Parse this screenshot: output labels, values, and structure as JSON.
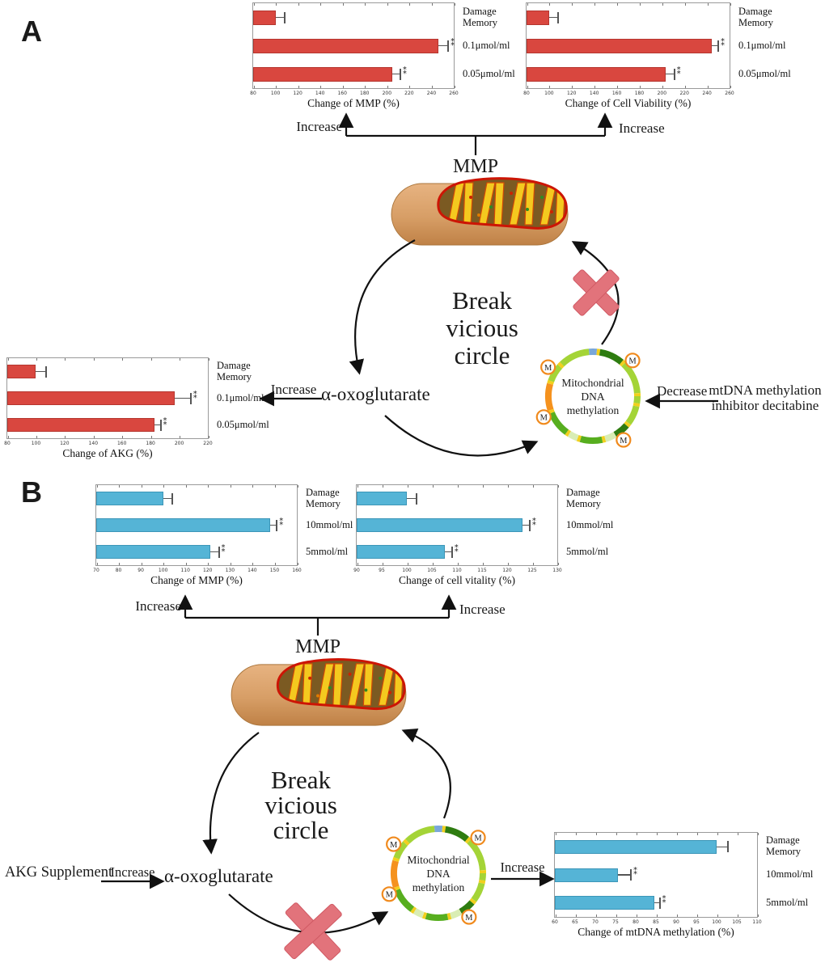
{
  "figure": {
    "panel_a_label": "A",
    "panel_b_label": "B"
  },
  "panels": {
    "a": {
      "increase_left": "Increase",
      "increase_right": "Increase",
      "mmp": "MMP",
      "break_line1": "Break",
      "break_line2": "vicious",
      "break_line3": "circle",
      "alpha_oxoglutarate": "α-oxoglutarate",
      "increase_akg": "Increase",
      "plasmid_line1": "Mitochondrial",
      "plasmid_line2": "DNA",
      "plasmid_line3": "methylation",
      "m_badge": "M",
      "decrease": "Decrease",
      "inhibitor_line1": "mtDNA methylation",
      "inhibitor_line2": "inhibitor decitabine"
    },
    "b": {
      "increase_left": "Increase",
      "increase_right": "Increase",
      "mmp": "MMP",
      "break_line1": "Break",
      "break_line2": "vicious",
      "break_line3": "circle",
      "akg_supplement": "AKG Supplement",
      "increase_supplement": "Increase",
      "alpha_oxoglutarate": "α-oxoglutarate",
      "plasmid_line1": "Mitochondrial",
      "plasmid_line2": "DNA",
      "plasmid_line3": "methylation",
      "m_badge": "M",
      "increase_mtdna": "Increase"
    }
  },
  "colors": {
    "bar_red": "#d9473f",
    "bar_red_border": "#b5362f",
    "bar_blue": "#55b4d6",
    "bar_blue_border": "#3c96b8",
    "cross_red": "#e2737b",
    "cross_red_border": "#d05a64",
    "plasmid_orange": "#f5921e",
    "mito_body_tan": "#d79e66",
    "mito_cristae_yellow": "#f4c91f",
    "mito_rim_red": "#cc1505"
  },
  "chart_data": [
    {
      "id": "a_mmp",
      "panel": "A",
      "type": "bar",
      "orientation": "horizontal",
      "xlabel": "Change of MMP (%)",
      "categories": [
        "Damage\nMemory",
        "0.1μmol/ml",
        "0.05μmol/ml"
      ],
      "values": [
        100,
        246,
        205
      ],
      "errors": [
        8,
        9,
        7
      ],
      "significance": [
        "",
        "**",
        "**"
      ],
      "xlim": [
        80,
        260
      ],
      "xticks": [
        80,
        100,
        120,
        140,
        160,
        180,
        200,
        220,
        240,
        260
      ],
      "bar_color": "#d9473f",
      "bar_border": "#b5362f",
      "grid": false,
      "legend": "none"
    },
    {
      "id": "a_cell_viability",
      "panel": "A",
      "type": "bar",
      "orientation": "horizontal",
      "xlabel": "Change of Cell Viability (%)",
      "categories": [
        "Damage\nMemory",
        "0.1μmol/ml",
        "0.05μmol/ml"
      ],
      "values": [
        100,
        244,
        203
      ],
      "errors": [
        8,
        6,
        8
      ],
      "significance": [
        "",
        "**",
        "**"
      ],
      "xlim": [
        80,
        260
      ],
      "xticks": [
        80,
        100,
        120,
        140,
        160,
        180,
        200,
        220,
        240,
        260
      ],
      "bar_color": "#d9473f",
      "bar_border": "#b5362f",
      "grid": false,
      "legend": "none"
    },
    {
      "id": "a_akg",
      "panel": "A",
      "type": "bar",
      "orientation": "horizontal",
      "xlabel": "Change of AKG (%)",
      "categories": [
        "Damage\nMemory",
        "0.1μmol/ml",
        "0.05μmol/ml"
      ],
      "values": [
        100,
        197,
        183
      ],
      "errors": [
        7,
        11,
        4
      ],
      "significance": [
        "",
        "**",
        "**"
      ],
      "xlim": [
        80,
        220
      ],
      "xticks": [
        80,
        100,
        120,
        140,
        160,
        180,
        200,
        220
      ],
      "bar_color": "#d9473f",
      "bar_border": "#b5362f",
      "grid": false,
      "legend": "none"
    },
    {
      "id": "b_mmp",
      "panel": "B",
      "type": "bar",
      "orientation": "horizontal",
      "xlabel": "Change of MMP (%)",
      "categories": [
        "Damage\nMemory",
        "10mmol/ml",
        "5mmol/ml"
      ],
      "values": [
        100,
        148,
        121
      ],
      "errors": [
        4,
        3,
        4
      ],
      "significance": [
        "",
        "**",
        "**"
      ],
      "xlim": [
        70,
        160
      ],
      "xticks": [
        70,
        80,
        90,
        100,
        110,
        120,
        130,
        140,
        150,
        160
      ],
      "bar_color": "#55b4d6",
      "bar_border": "#3c96b8",
      "grid": false,
      "legend": "none"
    },
    {
      "id": "b_cell_vitality",
      "panel": "B",
      "type": "bar",
      "orientation": "horizontal",
      "xlabel": "Change of cell vitality (%)",
      "categories": [
        "Damage\nMemory",
        "10mmol/ml",
        "5mmol/ml"
      ],
      "values": [
        100,
        123,
        107.5
      ],
      "errors": [
        2,
        1.5,
        1.5
      ],
      "significance": [
        "",
        "**",
        "**"
      ],
      "xlim": [
        90,
        130
      ],
      "xticks": [
        90,
        95,
        100,
        105,
        110,
        115,
        120,
        125,
        130
      ],
      "bar_color": "#55b4d6",
      "bar_border": "#3c96b8",
      "grid": false,
      "legend": "none"
    },
    {
      "id": "b_mtdna",
      "panel": "B",
      "type": "bar",
      "orientation": "horizontal",
      "xlabel": "Change of mtDNA methylation (%)",
      "categories": [
        "Damage\nMemory",
        "10mmol/ml",
        "5mmol/ml"
      ],
      "values": [
        100,
        75.5,
        84.5
      ],
      "errors": [
        2.7,
        3.3,
        1.4
      ],
      "significance": [
        "",
        "**",
        "**"
      ],
      "xlim": [
        60,
        110
      ],
      "xticks": [
        60,
        65,
        70,
        75,
        80,
        85,
        90,
        95,
        100,
        105,
        110
      ],
      "bar_color": "#55b4d6",
      "bar_border": "#3c96b8",
      "grid": false,
      "legend": "none"
    }
  ]
}
